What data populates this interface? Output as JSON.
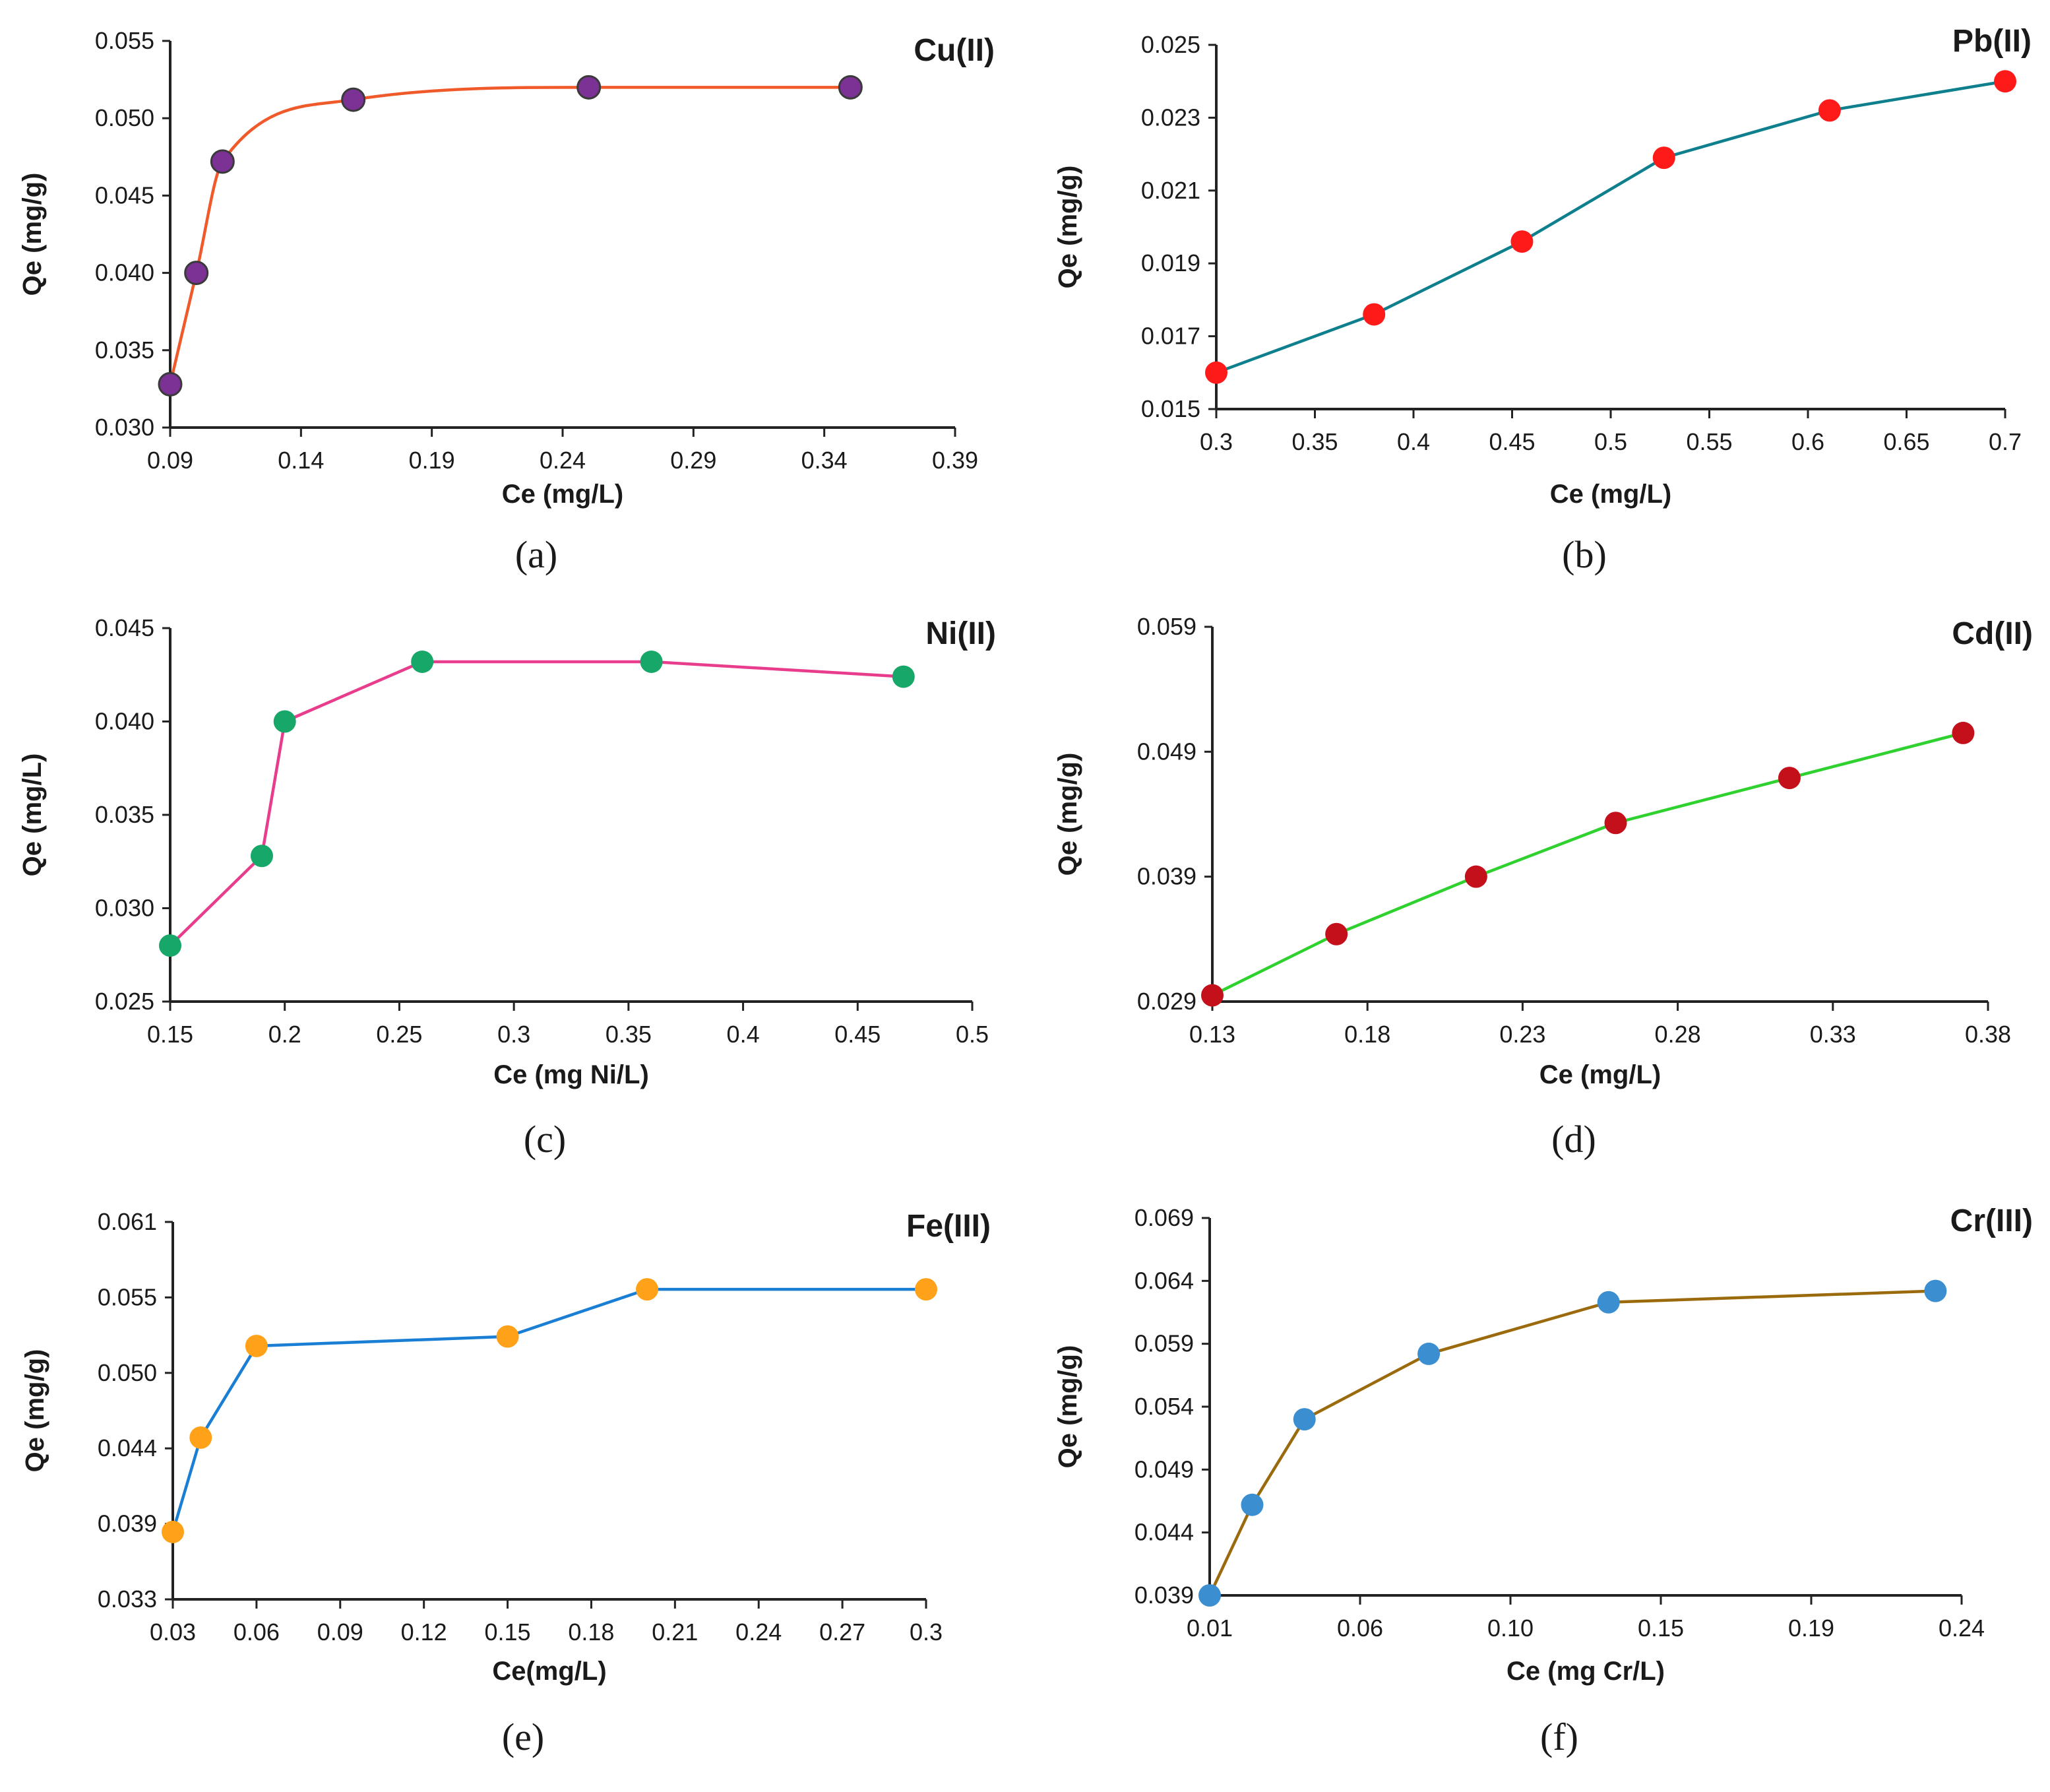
{
  "chart_data": [
    {
      "type": "line",
      "panel_label": "(a)",
      "title": "Cu(II)",
      "xlabel": "Ce (mg/L)",
      "ylabel": "Qe (mg/g)",
      "xlim": [
        0.09,
        0.39
      ],
      "ylim": [
        0.03,
        0.055
      ],
      "xticks": [
        "0.09",
        "0.14",
        "0.19",
        "0.24",
        "0.29",
        "0.34",
        "0.39"
      ],
      "yticks": [
        "0.030",
        "0.035",
        "0.040",
        "0.045",
        "0.050",
        "0.055"
      ],
      "smooth": true,
      "line_color": "#f0592a",
      "marker_color": "#7b3294",
      "x": [
        0.09,
        0.1,
        0.11,
        0.16,
        0.25,
        0.35
      ],
      "y": [
        0.0328,
        0.04,
        0.0472,
        0.0512,
        0.052,
        0.052
      ]
    },
    {
      "type": "line",
      "panel_label": "(b)",
      "title": "Pb(II)",
      "xlabel": "Ce (mg/L)",
      "ylabel": "Qe (mg/g)",
      "xlim": [
        0.3,
        0.7
      ],
      "ylim": [
        0.015,
        0.025
      ],
      "xticks": [
        "0.3",
        "0.35",
        "0.4",
        "0.45",
        "0.5",
        "0.55",
        "0.6",
        "0.65",
        "0.7"
      ],
      "yticks": [
        "0.015",
        "0.017",
        "0.019",
        "0.021",
        "0.023",
        "0.025"
      ],
      "smooth": false,
      "line_color": "#0e7f8c",
      "marker_color": "#ff1a1a",
      "x": [
        0.3,
        0.38,
        0.455,
        0.527,
        0.611,
        0.7
      ],
      "y": [
        0.016,
        0.0176,
        0.0196,
        0.0219,
        0.0232,
        0.024
      ]
    },
    {
      "type": "line",
      "panel_label": "(c)",
      "title": "Ni(II)",
      "xlabel": "Ce (mg Ni/L)",
      "ylabel": "Qe (mg/L)",
      "xlim": [
        0.15,
        0.5
      ],
      "ylim": [
        0.025,
        0.045
      ],
      "xticks": [
        "0.15",
        "0.2",
        "0.25",
        "0.3",
        "0.35",
        "0.4",
        "0.45",
        "0.5"
      ],
      "yticks": [
        "0.025",
        "0.030",
        "0.035",
        "0.040",
        "0.045"
      ],
      "smooth": false,
      "line_color": "#e83c8c",
      "marker_color": "#17a768",
      "x": [
        0.15,
        0.19,
        0.2,
        0.26,
        0.36,
        0.47
      ],
      "y": [
        0.028,
        0.0328,
        0.04,
        0.0432,
        0.0432,
        0.0424
      ]
    },
    {
      "type": "line",
      "panel_label": "(d)",
      "title": "Cd(II)",
      "xlabel": "Ce (mg/L)",
      "ylabel": "Qe (mg/g)",
      "xlim": [
        0.13,
        0.38
      ],
      "ylim": [
        0.029,
        0.059
      ],
      "xticks": [
        "0.13",
        "0.18",
        "0.23",
        "0.28",
        "0.33",
        "0.38"
      ],
      "yticks": [
        "0.029",
        "0.039",
        "0.049",
        "0.059"
      ],
      "smooth": false,
      "line_color": "#2fd12f",
      "marker_color": "#c4101a",
      "x": [
        0.13,
        0.17,
        0.215,
        0.26,
        0.316,
        0.372
      ],
      "y": [
        0.0295,
        0.0344,
        0.039,
        0.0433,
        0.0469,
        0.0505
      ]
    },
    {
      "type": "line",
      "panel_label": "(e)",
      "title": "Fe(III)",
      "xlabel": "Ce(mg/L)",
      "ylabel": "Qe (mg/g)",
      "xlim": [
        0.03,
        0.3
      ],
      "ylim": [
        0.033,
        0.061
      ],
      "xticks": [
        "0.03",
        "0.06",
        "0.09",
        "0.12",
        "0.15",
        "0.18",
        "0.21",
        "0.24",
        "0.27",
        "0.3"
      ],
      "yticks": [
        "0.033",
        "0.039",
        "0.044",
        "0.050",
        "0.055",
        "0.061"
      ],
      "smooth": false,
      "line_color": "#1a7fd4",
      "marker_color": "#ffa21a",
      "x": [
        0.03,
        0.04,
        0.06,
        0.15,
        0.2,
        0.3
      ],
      "y": [
        0.038,
        0.045,
        0.0518,
        0.0525,
        0.056,
        0.056
      ]
    },
    {
      "type": "line",
      "panel_label": "(f)",
      "title": "Cr(III)",
      "xlabel": "Ce (mg Cr/L)",
      "ylabel": "Qe (mg/g)",
      "xlim": [
        0.01,
        0.24
      ],
      "ylim": [
        0.039,
        0.069
      ],
      "xticks": [
        "0.01",
        "0.06",
        "0.10",
        "0.15",
        "0.19",
        "0.24"
      ],
      "yticks": [
        "0.039",
        "0.044",
        "0.049",
        "0.054",
        "0.059",
        "0.064",
        "0.069"
      ],
      "smooth": false,
      "line_color": "#9a6a0c",
      "marker_color": "#3b8ed0",
      "x": [
        0.01,
        0.023,
        0.039,
        0.077,
        0.132,
        0.232
      ],
      "y": [
        0.039,
        0.0462,
        0.053,
        0.0582,
        0.0623,
        0.0632
      ]
    }
  ]
}
